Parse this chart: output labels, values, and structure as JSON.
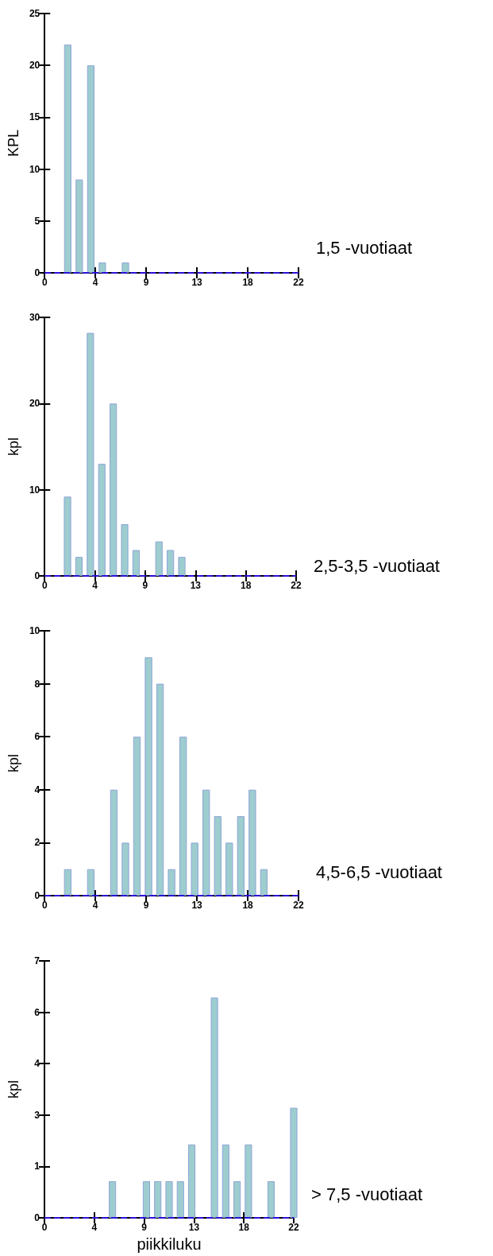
{
  "chart_data": [
    {
      "type": "bar",
      "annotations": [
        "1,5 -vuotiaat"
      ],
      "ylabel": "KPL",
      "x": [
        2,
        3,
        4,
        5,
        7
      ],
      "values": [
        22,
        9,
        20,
        1,
        1
      ],
      "color": "#9dcdcf",
      "xlim": [
        0,
        22
      ],
      "xticks": [
        {
          "value": 0,
          "label": "0"
        },
        {
          "value": 4.4,
          "label": "4"
        },
        {
          "value": 8.8,
          "label": "9"
        },
        {
          "value": 13.2,
          "label": "13"
        },
        {
          "value": 17.6,
          "label": "18"
        },
        {
          "value": 22,
          "label": "22"
        }
      ],
      "ylim": [
        0,
        25
      ],
      "yticks": [
        {
          "value": 0,
          "label": "0"
        },
        5,
        10,
        15,
        20,
        25
      ],
      "ref_lines": [
        {
          "axis": "y",
          "value": 0,
          "color": "#2a10d8",
          "line_style": "dashed"
        }
      ]
    },
    {
      "type": "bar",
      "annotations": [
        "2,5-3,5 -vuotiaat"
      ],
      "ylabel": "kpl",
      "x": [
        2,
        3,
        4,
        5,
        6,
        7,
        8,
        10,
        11,
        12
      ],
      "values": [
        9.2,
        2.2,
        28.2,
        13,
        20,
        6,
        3,
        4,
        3,
        2.2
      ],
      "color": "#9dcdcf",
      "xlim": [
        0,
        22
      ],
      "xticks": [
        {
          "value": 0,
          "label": "0"
        },
        {
          "value": 4.4,
          "label": "4"
        },
        {
          "value": 8.8,
          "label": "9"
        },
        {
          "value": 13.2,
          "label": "13"
        },
        {
          "value": 17.6,
          "label": "18"
        },
        {
          "value": 22,
          "label": "22"
        }
      ],
      "ylim": [
        0,
        30
      ],
      "yticks": [
        {
          "value": 0,
          "label": "0"
        },
        10,
        20,
        30
      ],
      "ref_lines": [
        {
          "axis": "y",
          "value": 0,
          "color": "#2a10d8",
          "line_style": "dashed"
        }
      ]
    },
    {
      "type": "bar",
      "annotations": [
        "4,5-6,5 -vuotiaat"
      ],
      "ylabel": "kpl",
      "x": [
        2,
        4,
        6,
        7,
        8,
        9,
        10,
        11,
        12,
        13,
        14,
        15,
        16,
        17,
        18,
        19
      ],
      "values": [
        1,
        1,
        4,
        2,
        6,
        9,
        8,
        1,
        6,
        2,
        4,
        3,
        2,
        3,
        4,
        1
      ],
      "color": "#9dcdcf",
      "xlim": [
        0,
        22
      ],
      "xticks": [
        {
          "value": 0,
          "label": "0"
        },
        {
          "value": 4.4,
          "label": "4"
        },
        {
          "value": 8.8,
          "label": "9"
        },
        {
          "value": 13.2,
          "label": "13"
        },
        {
          "value": 17.6,
          "label": "18"
        },
        {
          "value": 22,
          "label": "22"
        }
      ],
      "ylim": [
        0,
        10
      ],
      "yticks": [
        {
          "value": 0,
          "label": "0"
        },
        2,
        4,
        6,
        8,
        10
      ],
      "ref_lines": [
        {
          "axis": "y",
          "value": 0,
          "color": "#2a10d8",
          "line_style": "dashed"
        }
      ]
    },
    {
      "type": "bar",
      "annotations": [
        "> 7,5 -vuotiaat"
      ],
      "xlabel": "piikkiluku",
      "ylabel": "kpl",
      "x": [
        6,
        9,
        10,
        11,
        12,
        13,
        15,
        16,
        17,
        18,
        20,
        22
      ],
      "values": [
        1,
        1,
        1,
        1,
        1,
        2,
        6,
        2,
        1,
        2,
        1,
        3
      ],
      "color": "#9dcdcf",
      "xlim": [
        0,
        22
      ],
      "xticks": [
        {
          "value": 0,
          "label": "0"
        },
        {
          "value": 4.4,
          "label": "4"
        },
        {
          "value": 8.8,
          "label": "9"
        },
        {
          "value": 13.2,
          "label": "13"
        },
        {
          "value": 17.6,
          "label": "18"
        },
        {
          "value": 22,
          "label": "22"
        }
      ],
      "ylim": [
        0,
        7
      ],
      "yticks": [
        {
          "value": 0,
          "label": "0"
        },
        {
          "value": 1.4,
          "label": "1"
        },
        {
          "value": 2.8,
          "label": "3"
        },
        {
          "value": 4.2,
          "label": "4"
        },
        {
          "value": 5.6,
          "label": "6"
        },
        7
      ],
      "ref_lines": [
        {
          "axis": "y",
          "value": 0,
          "color": "#2a10d8",
          "line_style": "dashed"
        }
      ]
    }
  ]
}
